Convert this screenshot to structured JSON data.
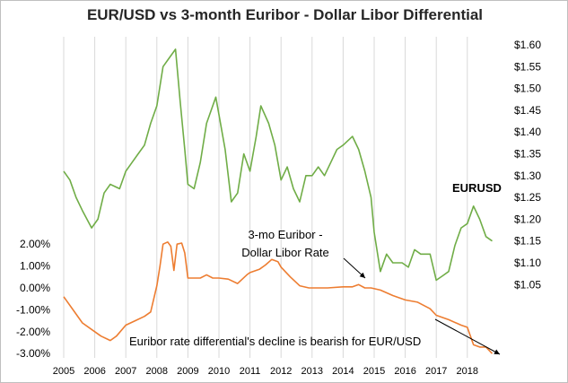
{
  "chart_data": {
    "type": "line",
    "title": "EUR/USD vs 3-month Euribor - Dollar Libor Differential",
    "x_ticks": [
      "2005",
      "2006",
      "2007",
      "2008",
      "2009",
      "2010",
      "2011",
      "2012",
      "2013",
      "2014",
      "2015",
      "2016",
      "2017",
      "2018"
    ],
    "y_right": {
      "ticks": [
        "$1.05",
        "$1.10",
        "$1.15",
        "$1.20",
        "$1.25",
        "$1.30",
        "$1.35",
        "$1.40",
        "$1.45",
        "$1.50",
        "$1.55",
        "$1.60"
      ],
      "range": [
        1.05,
        1.6
      ]
    },
    "y_left": {
      "ticks": [
        "2.00%",
        "1.00%",
        "0.00%",
        "-1.00%",
        "-2.00%",
        "-3.00%"
      ],
      "range": [
        -3.0,
        2.0
      ]
    },
    "grid": "vertical",
    "series": [
      {
        "name": "EURUSD",
        "axis": "right",
        "color": "#70ad47",
        "x": [
          2005.0,
          2005.2,
          2005.4,
          2005.6,
          2005.9,
          2006.1,
          2006.3,
          2006.5,
          2006.8,
          2007.0,
          2007.2,
          2007.4,
          2007.6,
          2007.8,
          2008.0,
          2008.2,
          2008.4,
          2008.6,
          2008.75,
          2008.9,
          2009.0,
          2009.2,
          2009.4,
          2009.6,
          2009.9,
          2010.0,
          2010.2,
          2010.4,
          2010.6,
          2010.8,
          2011.0,
          2011.2,
          2011.35,
          2011.6,
          2011.8,
          2012.0,
          2012.2,
          2012.4,
          2012.6,
          2012.8,
          2013.0,
          2013.2,
          2013.4,
          2013.6,
          2013.8,
          2014.0,
          2014.3,
          2014.5,
          2014.7,
          2014.9,
          2015.0,
          2015.2,
          2015.4,
          2015.6,
          2015.9,
          2016.1,
          2016.3,
          2016.5,
          2016.8,
          2017.0,
          2017.2,
          2017.4,
          2017.6,
          2017.8,
          2018.0,
          2018.2,
          2018.4,
          2018.6,
          2018.8
        ],
        "values": [
          1.31,
          1.29,
          1.25,
          1.22,
          1.18,
          1.2,
          1.26,
          1.28,
          1.27,
          1.31,
          1.33,
          1.35,
          1.37,
          1.42,
          1.46,
          1.55,
          1.57,
          1.59,
          1.47,
          1.36,
          1.28,
          1.27,
          1.33,
          1.42,
          1.48,
          1.44,
          1.36,
          1.24,
          1.26,
          1.35,
          1.31,
          1.39,
          1.46,
          1.42,
          1.37,
          1.29,
          1.32,
          1.27,
          1.24,
          1.3,
          1.3,
          1.32,
          1.3,
          1.33,
          1.36,
          1.37,
          1.39,
          1.36,
          1.31,
          1.25,
          1.17,
          1.08,
          1.12,
          1.1,
          1.1,
          1.09,
          1.13,
          1.12,
          1.12,
          1.06,
          1.07,
          1.08,
          1.14,
          1.18,
          1.19,
          1.23,
          1.2,
          1.16,
          1.15
        ]
      },
      {
        "name": "3-mo Euribor - Dollar Libor Rate",
        "axis": "left",
        "color": "#ed7d31",
        "x": [
          2005.0,
          2005.3,
          2005.6,
          2006.0,
          2006.2,
          2006.5,
          2006.7,
          2007.0,
          2007.3,
          2007.6,
          2007.8,
          2008.0,
          2008.1,
          2008.2,
          2008.35,
          2008.45,
          2008.55,
          2008.65,
          2008.8,
          2008.9,
          2009.0,
          2009.2,
          2009.4,
          2009.6,
          2009.8,
          2010.0,
          2010.3,
          2010.6,
          2010.9,
          2011.0,
          2011.3,
          2011.5,
          2011.7,
          2011.9,
          2012.0,
          2012.3,
          2012.6,
          2012.9,
          2013.0,
          2013.5,
          2014.0,
          2014.3,
          2014.5,
          2014.7,
          2014.9,
          2015.2,
          2015.6,
          2016.0,
          2016.4,
          2016.8,
          2017.0,
          2017.4,
          2017.8,
          2018.0,
          2018.2,
          2018.4,
          2018.6,
          2018.8
        ],
        "values": [
          -0.4,
          -1.0,
          -1.6,
          -2.0,
          -2.2,
          -2.4,
          -2.2,
          -1.7,
          -1.5,
          -1.3,
          -1.1,
          0.1,
          1.0,
          2.0,
          2.1,
          1.9,
          0.8,
          2.0,
          2.05,
          1.6,
          0.45,
          0.45,
          0.45,
          0.6,
          0.45,
          0.45,
          0.4,
          0.2,
          0.6,
          0.7,
          0.85,
          1.05,
          1.3,
          1.2,
          0.95,
          0.5,
          0.1,
          0.0,
          0.0,
          0.0,
          0.05,
          0.05,
          0.15,
          0.0,
          0.0,
          -0.1,
          -0.35,
          -0.55,
          -0.65,
          -0.95,
          -1.25,
          -1.45,
          -1.7,
          -1.8,
          -2.6,
          -2.7,
          -2.7,
          -3.0
        ]
      }
    ],
    "annotations": {
      "eurusd_label": "EURUSD",
      "rate_label_line1": "3-mo Euribor -",
      "rate_label_line2": "Dollar Libor Rate",
      "bearish_note": "Euribor rate differential's decline is bearish for EUR/USD"
    }
  }
}
